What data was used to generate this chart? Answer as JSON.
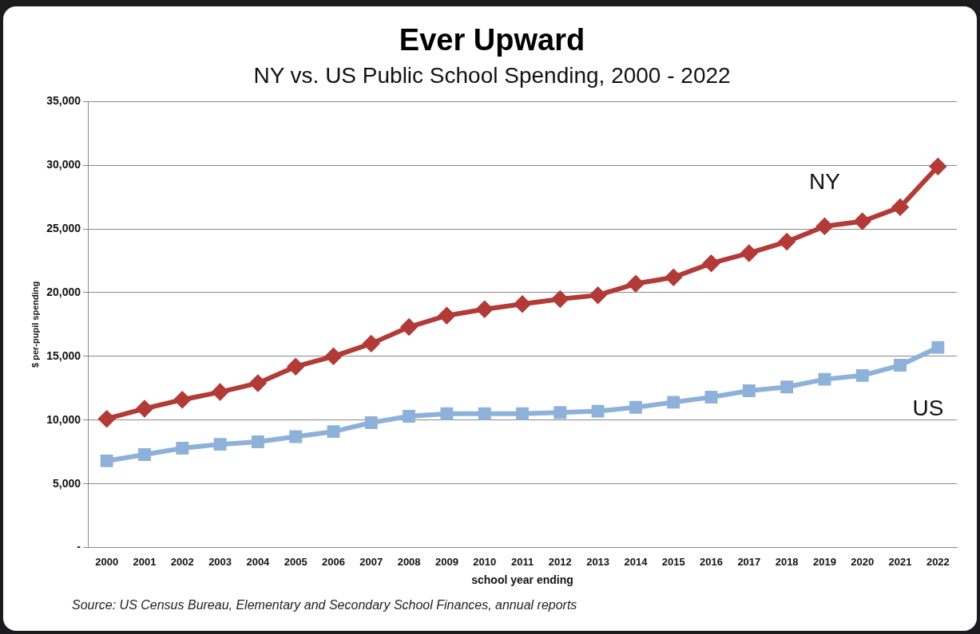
{
  "chart_data": {
    "type": "line",
    "title": "Ever Upward",
    "subtitle": "NY vs. US Public School Spending, 2000 - 2022",
    "xlabel": "school year ending",
    "ylabel": "$ per-pupil spending",
    "categories": [
      "2000",
      "2001",
      "2002",
      "2003",
      "2004",
      "2005",
      "2006",
      "2007",
      "2008",
      "2009",
      "2010",
      "2011",
      "2012",
      "2013",
      "2014",
      "2015",
      "2016",
      "2017",
      "2018",
      "2019",
      "2020",
      "2021",
      "2022"
    ],
    "series": [
      {
        "name": "NY",
        "color": "#b23a37",
        "marker": "diamond",
        "values": [
          10100,
          10900,
          11600,
          12200,
          12900,
          14200,
          15000,
          16000,
          17300,
          18200,
          18700,
          19100,
          19500,
          19800,
          20700,
          21200,
          22300,
          23100,
          24000,
          25200,
          25600,
          26700,
          29900
        ]
      },
      {
        "name": "US",
        "color": "#8eb1d9",
        "marker": "square",
        "values": [
          6800,
          7300,
          7800,
          8100,
          8300,
          8700,
          9100,
          9800,
          10300,
          10500,
          10500,
          10500,
          10600,
          10700,
          11000,
          11400,
          11800,
          12300,
          12600,
          13200,
          13500,
          14300,
          15700
        ]
      }
    ],
    "ylim": [
      0,
      35000
    ],
    "yticks": [
      {
        "value": 0,
        "label": "-"
      },
      {
        "value": 5000,
        "label": "5,000"
      },
      {
        "value": 10000,
        "label": "10,000"
      },
      {
        "value": 15000,
        "label": "15,000"
      },
      {
        "value": 20000,
        "label": "20,000"
      },
      {
        "value": 25000,
        "label": "25,000"
      },
      {
        "value": 30000,
        "label": "30,000"
      },
      {
        "value": 35000,
        "label": "35,000"
      }
    ],
    "grid": "y",
    "legend": false,
    "line_style": "solid",
    "annotations": [
      "Source: US Census Bureau, Elementary and Secondary School Finances, annual reports"
    ]
  }
}
